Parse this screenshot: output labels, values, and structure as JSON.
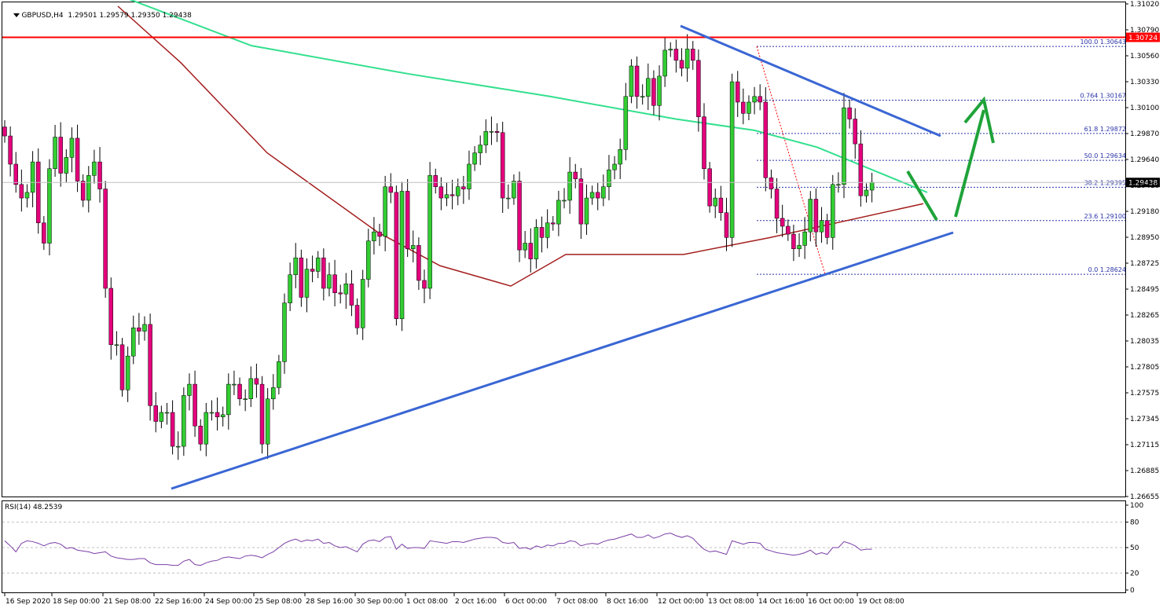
{
  "header": {
    "symbol": "GBPUSD,H4",
    "ohlc": "1.29501 1.29579 1.29350 1.29438"
  },
  "rsi_header": "RSI(14) 48.2539",
  "price_badges": {
    "resistance": "1.30724",
    "current": "1.29438"
  },
  "colors": {
    "bull_candle": "#32cd32",
    "bear_candle": "#e4007c",
    "resistance_line": "#ff0000",
    "trend_line": "#3a66d4",
    "ma_green": "#33e08e",
    "ma_red": "#a41e1e",
    "arrow": "#1fa33a",
    "rsi_line": "#7b3ea6",
    "fib": "#2a34a8"
  },
  "chart_data": [
    {
      "type": "candlestick",
      "title": "GBPUSD,H4",
      "ylim": [
        1.26655,
        1.3102
      ],
      "y_ticks": [
        "1.31020",
        "1.30790",
        "1.30560",
        "1.30330",
        "1.30100",
        "1.29870",
        "1.29640",
        "1.29410",
        "1.29180",
        "1.28950",
        "1.28725",
        "1.28495",
        "1.28265",
        "1.28035",
        "1.27805",
        "1.27575",
        "1.27345",
        "1.27115",
        "1.26885",
        "1.26655"
      ],
      "x_ticks": [
        "16 Sep 2020",
        "18 Sep 00:00",
        "21 Sep 08:00",
        "22 Sep 16:00",
        "24 Sep 00:00",
        "25 Sep 08:00",
        "28 Sep 16:00",
        "30 Sep 00:00",
        "1 Oct 08:00",
        "2 Oct 16:00",
        "6 Oct 00:00",
        "7 Oct 08:00",
        "8 Oct 16:00",
        "12 Oct 00:00",
        "13 Oct 08:00",
        "14 Oct 16:00",
        "16 Oct 00:00",
        "19 Oct 08:00"
      ],
      "closes": [
        1.2985,
        1.296,
        1.2942,
        1.293,
        1.2935,
        1.2962,
        1.2908,
        1.289,
        1.2956,
        1.2984,
        1.2952,
        1.2966,
        1.2983,
        1.2945,
        1.2928,
        1.295,
        1.2962,
        1.2938,
        1.285,
        1.28,
        1.28,
        1.276,
        1.279,
        1.2815,
        1.2812,
        1.2818,
        1.2746,
        1.2732,
        1.274,
        1.274,
        1.271,
        1.271,
        1.2755,
        1.2765,
        1.2728,
        1.2712,
        1.274,
        1.274,
        1.2736,
        1.2738,
        1.2765,
        1.2765,
        1.2752,
        1.2752,
        1.277,
        1.2765,
        1.2712,
        1.2752,
        1.2762,
        1.2785,
        1.2837,
        1.2862,
        1.2877,
        1.2842,
        1.2867,
        1.2865,
        1.2877,
        1.285,
        1.2862,
        1.2846,
        1.2845,
        1.2854,
        1.2835,
        1.2815,
        1.2858,
        1.2892,
        1.29,
        1.2896,
        1.294,
        1.2935,
        1.2823,
        1.2936,
        1.2885,
        1.2888,
        1.2857,
        1.285,
        1.295,
        1.294,
        1.293,
        1.2933,
        1.2932,
        1.294,
        1.2938,
        1.296,
        1.297,
        1.2977,
        1.2989,
        1.2989,
        1.2988,
        1.293,
        1.293,
        1.2945,
        1.2884,
        1.289,
        1.2876,
        1.2904,
        1.2895,
        1.2908,
        1.2907,
        1.2928,
        1.2928,
        1.2953,
        1.2947,
        1.2907,
        1.293,
        1.2935,
        1.293,
        1.294,
        1.2955,
        1.296,
        1.2973,
        1.302,
        1.3047,
        1.302,
        1.302,
        1.3036,
        1.3012,
        1.3038,
        1.3061,
        1.3062,
        1.3052,
        1.3045,
        1.3062,
        1.3052,
        1.3002,
        1.2956,
        1.2923,
        1.293,
        1.2917,
        1.2895,
        1.3033,
        1.3015,
        1.3005,
        1.3015,
        1.302,
        1.3015,
        1.2948,
        1.2938,
        1.2912,
        1.2905,
        1.2898,
        1.2885,
        1.2888,
        1.29,
        1.2929,
        1.29,
        1.291,
        1.2895,
        1.2942,
        1.2942,
        1.301,
        1.3,
        1.2978,
        1.2932,
        1.2937,
        1.2944
      ],
      "ma_green_approx": [
        1.311,
        1.3065,
        1.304,
        1.302,
        1.3,
        1.299,
        1.2975,
        1.2955,
        1.2935
      ],
      "ma_red_approx": [
        1.31,
        1.305,
        1.297,
        1.29,
        1.287,
        1.2852,
        1.288,
        1.288,
        1.2895,
        1.2925
      ],
      "fibonacci": [
        {
          "label": "100.0 1.30643",
          "value": 1.30643
        },
        {
          "label": "0.764 1.30167",
          "value": 1.30167
        },
        {
          "label": "61.8 1.29872",
          "value": 1.29872
        },
        {
          "label": "50.0 1.29634",
          "value": 1.29634
        },
        {
          "label": "38.2 1.29395",
          "value": 1.29395
        },
        {
          "label": "23.6 1.29100",
          "value": 1.291
        },
        {
          "label": "0.0 1.28624",
          "value": 1.28624
        }
      ],
      "resistance": 1.30724,
      "current_price": 1.29438
    },
    {
      "type": "line",
      "title": "RSI(14) 48.2539",
      "ylim": [
        0,
        100
      ],
      "y_ticks": [
        "100",
        "80",
        "50",
        "20",
        "0"
      ],
      "values": [
        58,
        52,
        45,
        55,
        58,
        57,
        55,
        52,
        55,
        56,
        54,
        49,
        50,
        47,
        46,
        45,
        43,
        44,
        45,
        40,
        38,
        37,
        36,
        36,
        37,
        37,
        32,
        30,
        30,
        30,
        29,
        29,
        34,
        36,
        30,
        29,
        32,
        34,
        35,
        38,
        39,
        38,
        37,
        40,
        41,
        40,
        38,
        42,
        45,
        50,
        55,
        58,
        60,
        57,
        59,
        58,
        60,
        55,
        56,
        52,
        50,
        51,
        48,
        45,
        54,
        58,
        59,
        57,
        62,
        63,
        48,
        54,
        49,
        50,
        50,
        49,
        58,
        57,
        56,
        55,
        57,
        57,
        56,
        58,
        60,
        61,
        62,
        62,
        61,
        56,
        55,
        56,
        49,
        50,
        48,
        52,
        50,
        53,
        52,
        55,
        55,
        58,
        57,
        52,
        54,
        55,
        54,
        57,
        59,
        60,
        62,
        64,
        66,
        62,
        62,
        65,
        61,
        63,
        66,
        67,
        64,
        62,
        64,
        61,
        54,
        48,
        45,
        46,
        44,
        42,
        58,
        56,
        54,
        56,
        56,
        55,
        48,
        46,
        44,
        43,
        42,
        41,
        42,
        44,
        47,
        42,
        44,
        42,
        50,
        50,
        57,
        55,
        52,
        47,
        48,
        48
      ]
    }
  ]
}
